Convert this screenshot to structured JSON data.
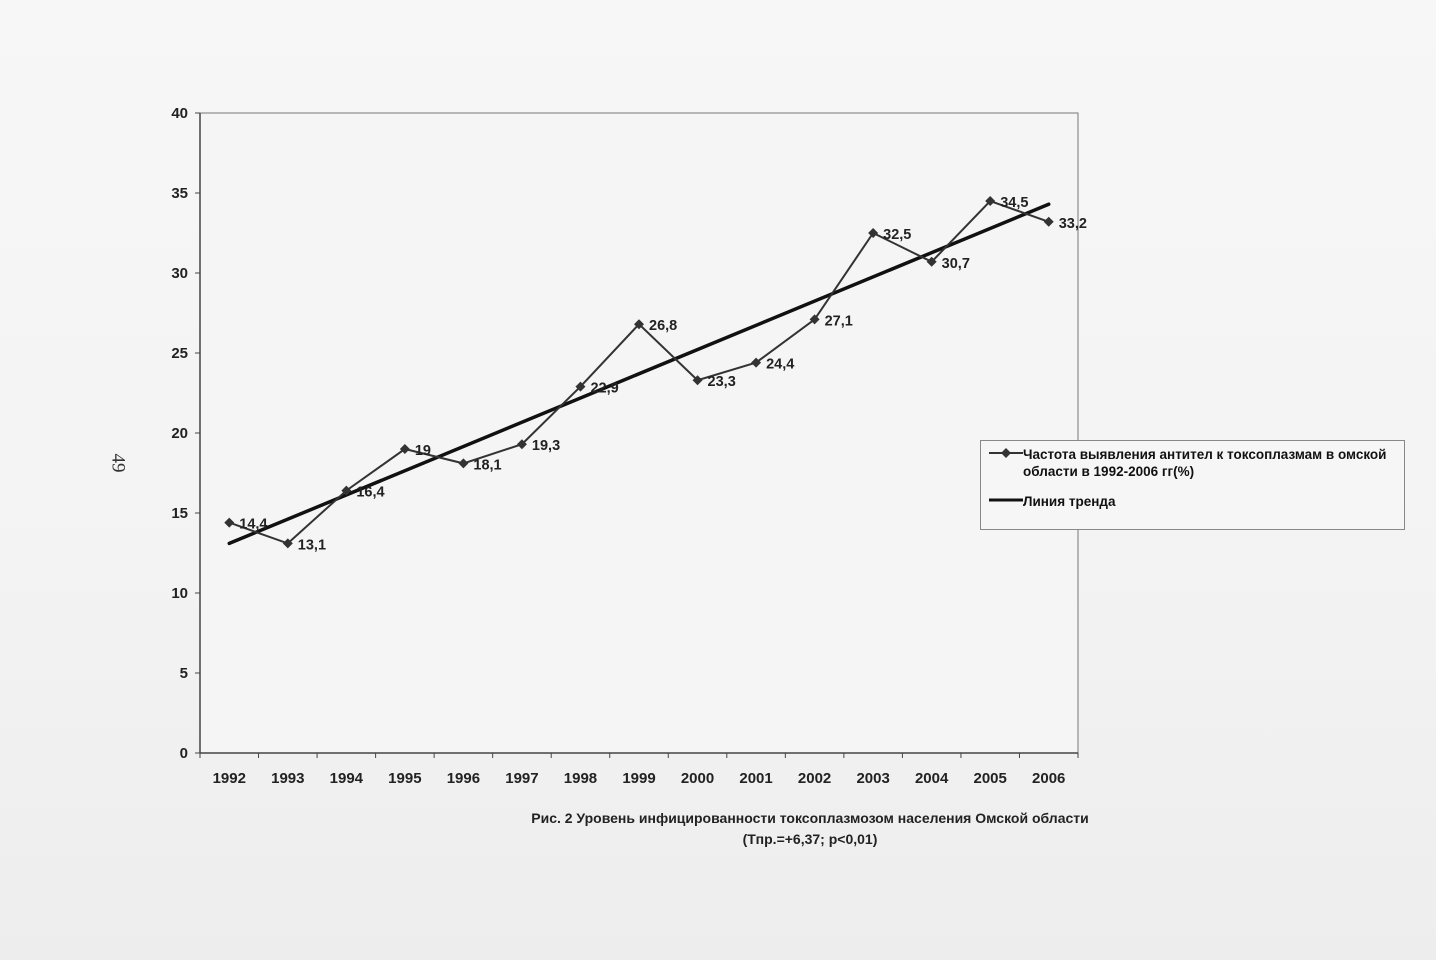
{
  "page": {
    "page_number": "49"
  },
  "caption": {
    "line1": "Рис. 2 Уровень инфицированности токсоплазмозом населения Омской области",
    "line2": "(Тпр.=+6,37; р<0,01)"
  },
  "chart_data": {
    "type": "line",
    "title": "",
    "xlabel": "",
    "ylabel": "",
    "categories": [
      "1992",
      "1993",
      "1994",
      "1995",
      "1996",
      "1997",
      "1998",
      "1999",
      "2000",
      "2001",
      "2002",
      "2003",
      "2004",
      "2005",
      "2006"
    ],
    "ylim": [
      0,
      40
    ],
    "yticks": [
      0,
      5,
      10,
      15,
      20,
      25,
      30,
      35,
      40
    ],
    "grid": true,
    "legend_position": "right",
    "series": [
      {
        "name": "Частота выявления антител к токсоплазмам в омской области в 1992-2006 гг(%)",
        "values": [
          14.4,
          13.1,
          16.4,
          19,
          18.1,
          19.3,
          22.9,
          26.8,
          23.3,
          24.4,
          27.1,
          32.5,
          30.7,
          34.5,
          33.2
        ],
        "data_labels": [
          "14,4",
          "13,1",
          "16,4",
          "19",
          "18,1",
          "19,3",
          "22,9",
          "26,8",
          "23,3",
          "24,4",
          "27,1",
          "32,5",
          "30,7",
          "34,5",
          "33,2"
        ],
        "marker": "diamond",
        "color": "#333333"
      },
      {
        "name": "Линия тренда",
        "values": [
          13.1,
          34.3
        ],
        "x": [
          "1992",
          "2006"
        ],
        "color": "#111111"
      }
    ]
  }
}
